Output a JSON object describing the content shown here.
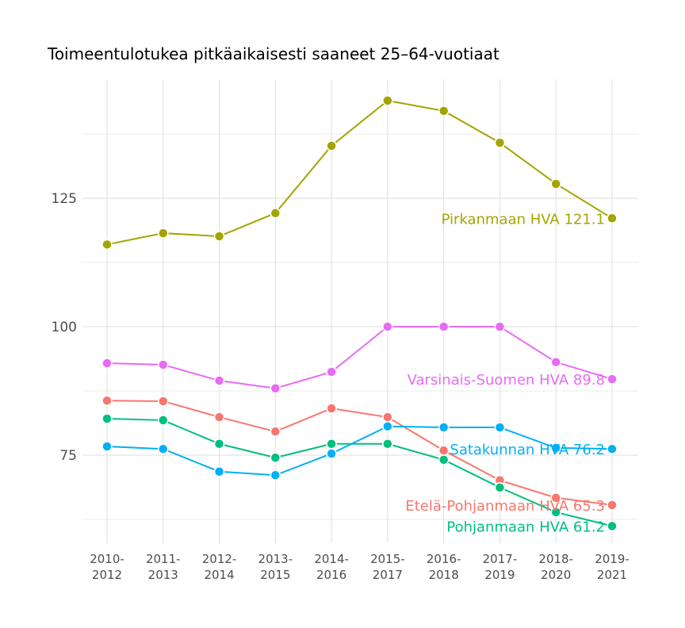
{
  "chart_data": {
    "type": "line",
    "title": "Toimeentulotukea pitkäaikaisesti saaneet 25–64-vuotiaat",
    "xlabel": "",
    "ylabel": "",
    "categories": [
      "2010-\n2012",
      "2011-\n2013",
      "2012-\n2014",
      "2013-\n2015",
      "2014-\n2016",
      "2015-\n2017",
      "2016-\n2018",
      "2017-\n2019",
      "2018-\n2020",
      "2019-\n2021"
    ],
    "yticks": [
      75,
      100,
      125
    ],
    "ylim": [
      58,
      148
    ],
    "grid": true,
    "legend": "direct labels at line ends",
    "series": [
      {
        "name": "Pirkanmaan HVA",
        "end_label": "Pirkanmaan HVA 121.1",
        "color": "#a3a500",
        "values": [
          116.0,
          118.2,
          117.6,
          122.1,
          135.2,
          144.0,
          142.0,
          135.8,
          127.8,
          121.1
        ]
      },
      {
        "name": "Varsinais-Suomen HVA",
        "end_label": "Varsinais-Suomen HVA 89.8",
        "color": "#e76bf3",
        "values": [
          92.9,
          92.6,
          89.5,
          88.0,
          91.2,
          100.0,
          100.0,
          100.0,
          93.1,
          89.8
        ]
      },
      {
        "name": "Etelä-Pohjanmaan HVA",
        "end_label": "Etelä-Pohjanmaan HVA 65.3",
        "color": "#f8766d",
        "values": [
          85.6,
          85.5,
          82.4,
          79.6,
          84.1,
          82.4,
          75.9,
          70.1,
          66.7,
          65.3
        ]
      },
      {
        "name": "Pohjanmaan HVA",
        "end_label": "Pohjanmaan HVA 61.2",
        "color": "#00bf7d",
        "values": [
          82.1,
          81.8,
          77.2,
          74.5,
          77.2,
          77.2,
          74.1,
          68.7,
          63.9,
          61.2
        ]
      },
      {
        "name": "Satakunnan HVA",
        "end_label": "Satakunnan HVA 76.2",
        "color": "#00b0f6",
        "values": [
          76.7,
          76.2,
          71.8,
          71.1,
          75.3,
          80.6,
          80.4,
          80.4,
          76.4,
          76.2
        ]
      }
    ]
  }
}
